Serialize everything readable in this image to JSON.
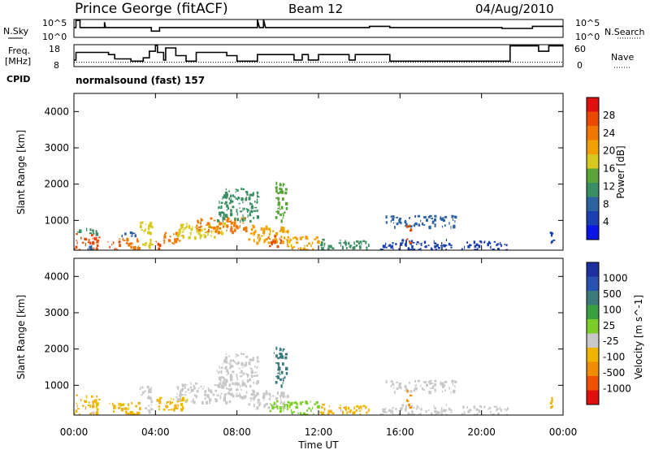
{
  "header": {
    "station": "Prince George (fitACF)",
    "beam": "Beam 12",
    "date": "04/Aug/2010"
  },
  "side_labels": {
    "nsky": "N.Sky",
    "freq": "Freq.",
    "freq_unit": "[MHz]",
    "cpid": "CPID",
    "nsearch": "N.Search",
    "nave": "Nave"
  },
  "cpid_text": "normalsound (fast) 157",
  "xlabel": "Time UT",
  "chart_data": [
    {
      "type": "line",
      "name": "noise",
      "x_unit": "hours UT",
      "xlim": [
        0,
        24
      ],
      "y_left_ticks": [
        "10^5",
        "10^0"
      ],
      "y_right_ticks": [
        "10^5",
        "10^0"
      ],
      "sky_level": [
        [
          0,
          0.55
        ],
        [
          0.1,
          0.55
        ],
        [
          0.1,
          0.95
        ],
        [
          0.3,
          0.95
        ],
        [
          0.3,
          0.55
        ],
        [
          1.5,
          0.55
        ],
        [
          1.5,
          0.85
        ],
        [
          1.55,
          0.55
        ],
        [
          3.8,
          0.55
        ],
        [
          3.8,
          0.35
        ],
        [
          4.2,
          0.35
        ],
        [
          4.2,
          0.55
        ],
        [
          9.0,
          0.55
        ],
        [
          9.0,
          1.0
        ],
        [
          9.1,
          0.55
        ],
        [
          9.3,
          0.55
        ],
        [
          9.3,
          1.0
        ],
        [
          9.4,
          0.55
        ],
        [
          14.5,
          0.55
        ],
        [
          14.5,
          0.62
        ],
        [
          15.5,
          0.62
        ],
        [
          15.5,
          0.55
        ],
        [
          21.0,
          0.55
        ],
        [
          21.0,
          0.5
        ],
        [
          22.5,
          0.5
        ],
        [
          22.5,
          0.62
        ],
        [
          24,
          0.62
        ]
      ]
    },
    {
      "type": "line",
      "name": "frequency",
      "ylim": [
        8,
        18
      ],
      "y_left_ticks": [
        18,
        8
      ],
      "y_right_ticks": [
        60,
        0
      ],
      "freq_mhz": [
        [
          0,
          11
        ],
        [
          0.1,
          11
        ],
        [
          0.1,
          14.5
        ],
        [
          1.7,
          14.5
        ],
        [
          1.7,
          13.5
        ],
        [
          2.0,
          13.5
        ],
        [
          2.0,
          11.5
        ],
        [
          2.8,
          11.5
        ],
        [
          2.8,
          10.5
        ],
        [
          3.4,
          10.5
        ],
        [
          3.4,
          12.0
        ],
        [
          3.7,
          12.0
        ],
        [
          3.7,
          15.0
        ],
        [
          4.0,
          15.0
        ],
        [
          4.0,
          17.6
        ],
        [
          4.1,
          17.6
        ],
        [
          4.1,
          14.5
        ],
        [
          4.4,
          14.5
        ],
        [
          4.4,
          11.0
        ],
        [
          4.5,
          11.0
        ],
        [
          4.5,
          16.5
        ],
        [
          5.0,
          16.5
        ],
        [
          5.0,
          13.0
        ],
        [
          5.5,
          13.0
        ],
        [
          5.5,
          10.5
        ],
        [
          6.0,
          10.5
        ],
        [
          6.0,
          14.5
        ],
        [
          7.5,
          14.5
        ],
        [
          7.5,
          13.0
        ],
        [
          8.0,
          13.0
        ],
        [
          8.0,
          10.5
        ],
        [
          9.0,
          10.5
        ],
        [
          9.0,
          13.5
        ],
        [
          10.8,
          13.5
        ],
        [
          10.8,
          11.0
        ],
        [
          11.2,
          11.0
        ],
        [
          11.2,
          13.5
        ],
        [
          11.5,
          13.5
        ],
        [
          11.5,
          11.0
        ],
        [
          12.0,
          11.0
        ],
        [
          12.0,
          13.5
        ],
        [
          13.5,
          13.5
        ],
        [
          13.5,
          11.0
        ],
        [
          13.8,
          11.0
        ],
        [
          13.8,
          13.5
        ],
        [
          15.5,
          13.5
        ],
        [
          15.5,
          10.5
        ],
        [
          21.4,
          10.5
        ],
        [
          21.4,
          17.5
        ],
        [
          22.8,
          17.5
        ],
        [
          22.8,
          15.0
        ],
        [
          23.3,
          15.0
        ],
        [
          23.3,
          17.5
        ],
        [
          24,
          17.5
        ]
      ],
      "nave_dotted": 12
    },
    {
      "type": "heatmap",
      "title": "Power",
      "ylabel": "Slant Range [km]",
      "colorbar_label": "Power [dB]",
      "xlim": [
        0,
        24
      ],
      "ylim": [
        180,
        4500
      ],
      "y_ticks": [
        1000,
        2000,
        3000,
        4000
      ],
      "x_ticks": [
        "00:00",
        "04:00",
        "08:00",
        "12:00",
        "16:00",
        "20:00",
        "00:00"
      ],
      "colorbar_ticks": [
        4,
        8,
        12,
        16,
        20,
        24,
        28
      ],
      "colorbar_colors": [
        "#0a14e6",
        "#1a3fb0",
        "#2d62a0",
        "#3a8f62",
        "#5aa53a",
        "#d7c81e",
        "#f0a000",
        "#f07800",
        "#e94a00",
        "#e01010"
      ],
      "clim": [
        0,
        32
      ],
      "blocks": [
        {
          "t": [
            0.0,
            1.2
          ],
          "r": [
            200,
            650
          ],
          "v": 27
        },
        {
          "t": [
            0.0,
            1.2
          ],
          "r": [
            650,
            800
          ],
          "v": 12
        },
        {
          "t": [
            0.6,
            0.9
          ],
          "r": [
            200,
            320
          ],
          "v": 9
        },
        {
          "t": [
            1.6,
            2.2
          ],
          "r": [
            220,
            450
          ],
          "v": 26
        },
        {
          "t": [
            2.2,
            3.2
          ],
          "r": [
            200,
            550
          ],
          "v": 24
        },
        {
          "t": [
            2.3,
            3.0
          ],
          "r": [
            550,
            700
          ],
          "v": 9
        },
        {
          "t": [
            3.2,
            3.8
          ],
          "r": [
            260,
            1000
          ],
          "v": 19
        },
        {
          "t": [
            4.0,
            4.2
          ],
          "r": [
            200,
            500
          ],
          "v": 28
        },
        {
          "t": [
            4.3,
            5.3
          ],
          "r": [
            350,
            700
          ],
          "v": 25
        },
        {
          "t": [
            5.0,
            7.5
          ],
          "r": [
            550,
            950
          ],
          "v": 18
        },
        {
          "t": [
            6.0,
            8.5
          ],
          "r": [
            700,
            1100
          ],
          "v": 25
        },
        {
          "t": [
            7.0,
            9.0
          ],
          "r": [
            1000,
            1900
          ],
          "v": 10
        },
        {
          "t": [
            8.5,
            10.5
          ],
          "r": [
            400,
            900
          ],
          "v": 22
        },
        {
          "t": [
            9.5,
            10.2
          ],
          "r": [
            300,
            600
          ],
          "v": 28
        },
        {
          "t": [
            9.8,
            10.4
          ],
          "r": [
            1000,
            2100
          ],
          "v": 14
        },
        {
          "t": [
            10.4,
            12.0
          ],
          "r": [
            200,
            600
          ],
          "v": 20
        },
        {
          "t": [
            12.0,
            14.5
          ],
          "r": [
            200,
            500
          ],
          "v": 12
        },
        {
          "t": [
            15.0,
            18.5
          ],
          "r": [
            200,
            500
          ],
          "v": 6
        },
        {
          "t": [
            15.2,
            18.8
          ],
          "r": [
            850,
            1150
          ],
          "v": 8
        },
        {
          "t": [
            16.3,
            16.5
          ],
          "r": [
            400,
            900
          ],
          "v": 27
        },
        {
          "t": [
            19.0,
            21.3
          ],
          "r": [
            200,
            450
          ],
          "v": 5
        },
        {
          "t": [
            23.3,
            23.5
          ],
          "r": [
            400,
            700
          ],
          "v": 6
        }
      ]
    },
    {
      "type": "heatmap",
      "title": "Velocity",
      "ylabel": "Slant Range [km]",
      "colorbar_label": "Velocity [m s^-1]",
      "xlim": [
        0,
        24
      ],
      "ylim": [
        180,
        4500
      ],
      "y_ticks": [
        1000,
        2000,
        3000,
        4000
      ],
      "x_ticks": [
        "00:00",
        "04:00",
        "08:00",
        "12:00",
        "16:00",
        "20:00",
        "00:00"
      ],
      "colorbar_ticks": [
        "1000",
        "500",
        "100",
        "25",
        "-25",
        "-100",
        "-500",
        "-1000"
      ],
      "colorbar_colors": [
        "#1e2f9f",
        "#2752b0",
        "#3b7a7a",
        "#38a040",
        "#7ccd2a",
        "#c8c8c8",
        "#f0b400",
        "#f08c00",
        "#f05000",
        "#e01010"
      ],
      "blocks": [
        {
          "t": [
            0.0,
            1.2
          ],
          "r": [
            200,
            750
          ],
          "c": "#f0b400"
        },
        {
          "t": [
            1.6,
            3.2
          ],
          "r": [
            200,
            550
          ],
          "c": "#f0b400"
        },
        {
          "t": [
            3.2,
            3.8
          ],
          "r": [
            260,
            1000
          ],
          "c": "#c8c8c8"
        },
        {
          "t": [
            4.0,
            5.5
          ],
          "r": [
            300,
            700
          ],
          "c": "#f0b400"
        },
        {
          "t": [
            5.0,
            8.5
          ],
          "r": [
            550,
            1100
          ],
          "c": "#c8c8c8"
        },
        {
          "t": [
            7.0,
            9.0
          ],
          "r": [
            1000,
            1900
          ],
          "c": "#c8c8c8"
        },
        {
          "t": [
            8.5,
            10.5
          ],
          "r": [
            400,
            900
          ],
          "c": "#c8c8c8"
        },
        {
          "t": [
            9.5,
            10.4
          ],
          "r": [
            300,
            600
          ],
          "c": "#7ccd2a"
        },
        {
          "t": [
            9.8,
            10.4
          ],
          "r": [
            1000,
            2100
          ],
          "c": "#3b7a7a"
        },
        {
          "t": [
            10.4,
            12.0
          ],
          "r": [
            200,
            600
          ],
          "c": "#7ccd2a"
        },
        {
          "t": [
            12.0,
            14.5
          ],
          "r": [
            200,
            500
          ],
          "c": "#f0b400"
        },
        {
          "t": [
            15.0,
            18.5
          ],
          "r": [
            200,
            500
          ],
          "c": "#c8c8c8"
        },
        {
          "t": [
            15.2,
            18.8
          ],
          "r": [
            850,
            1150
          ],
          "c": "#c8c8c8"
        },
        {
          "t": [
            16.3,
            16.5
          ],
          "r": [
            400,
            900
          ],
          "c": "#f08c00"
        },
        {
          "t": [
            19.0,
            21.3
          ],
          "r": [
            200,
            450
          ],
          "c": "#c8c8c8"
        },
        {
          "t": [
            23.3,
            23.5
          ],
          "r": [
            400,
            700
          ],
          "c": "#f0b400"
        }
      ]
    }
  ]
}
